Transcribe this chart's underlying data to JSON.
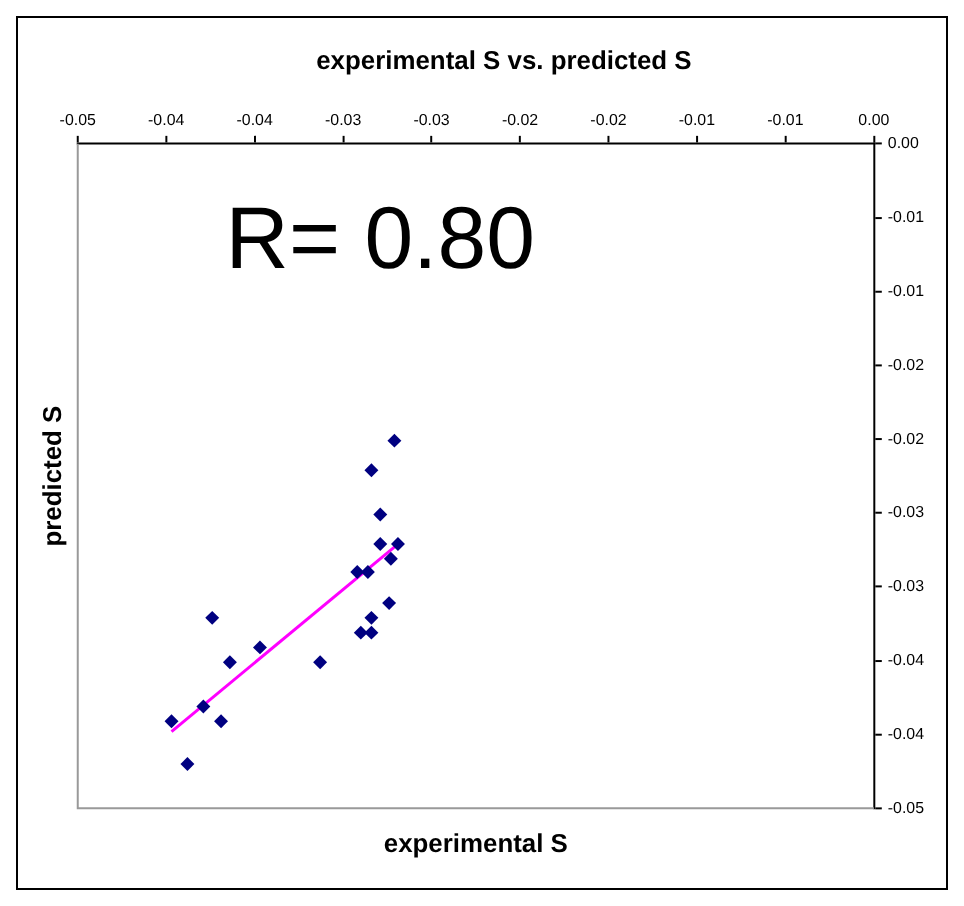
{
  "chart_data": {
    "type": "scatter",
    "title": "experimental S vs. predicted S",
    "xlabel": "experimental S",
    "ylabel": "predicted S",
    "annotations": [
      "R= 0.80"
    ],
    "xlim": [
      -0.045,
      0
    ],
    "ylim": [
      -0.045,
      0
    ],
    "xticks": [
      {
        "value": -0.045,
        "label": "-0.05"
      },
      {
        "value": -0.04,
        "label": "-0.04"
      },
      {
        "value": -0.035,
        "label": "-0.04"
      },
      {
        "value": -0.03,
        "label": "-0.03"
      },
      {
        "value": -0.025,
        "label": "-0.03"
      },
      {
        "value": -0.02,
        "label": "-0.02"
      },
      {
        "value": -0.015,
        "label": "-0.02"
      },
      {
        "value": -0.01,
        "label": "-0.01"
      },
      {
        "value": -0.005,
        "label": "-0.01"
      },
      {
        "value": 0,
        "label": "0.00"
      }
    ],
    "yticks": [
      {
        "value": 0,
        "label": "0.00"
      },
      {
        "value": -0.005,
        "label": "-0.01"
      },
      {
        "value": -0.01,
        "label": "-0.01"
      },
      {
        "value": -0.015,
        "label": "-0.02"
      },
      {
        "value": -0.02,
        "label": "-0.02"
      },
      {
        "value": -0.025,
        "label": "-0.03"
      },
      {
        "value": -0.03,
        "label": "-0.03"
      },
      {
        "value": -0.035,
        "label": "-0.04"
      },
      {
        "value": -0.04,
        "label": "-0.04"
      },
      {
        "value": -0.045,
        "label": "-0.05"
      }
    ],
    "grid": false,
    "legend": false,
    "marker": "diamond",
    "series": [
      {
        "type": "scatter",
        "color": "#000080",
        "x": [
          -0.0271,
          -0.0284,
          -0.0279,
          -0.0279,
          -0.0269,
          -0.0273,
          -0.0292,
          -0.0286,
          -0.0274,
          -0.0374,
          -0.0284,
          -0.029,
          -0.0284,
          -0.0347,
          -0.0364,
          -0.0313,
          -0.0379,
          -0.0397,
          -0.0369,
          -0.0388
        ],
        "values": [
          -0.0201,
          -0.0221,
          -0.0251,
          -0.0271,
          -0.0271,
          -0.0281,
          -0.029,
          -0.029,
          -0.0311,
          -0.0321,
          -0.0321,
          -0.0331,
          -0.0331,
          -0.0341,
          -0.0351,
          -0.0351,
          -0.0381,
          -0.0391,
          -0.0391,
          -0.042
        ]
      },
      {
        "type": "line",
        "color": "#ff00ff",
        "marker": "none",
        "x": [
          -0.0397,
          -0.0269
        ],
        "values": [
          -0.0398,
          -0.0271
        ]
      }
    ]
  }
}
